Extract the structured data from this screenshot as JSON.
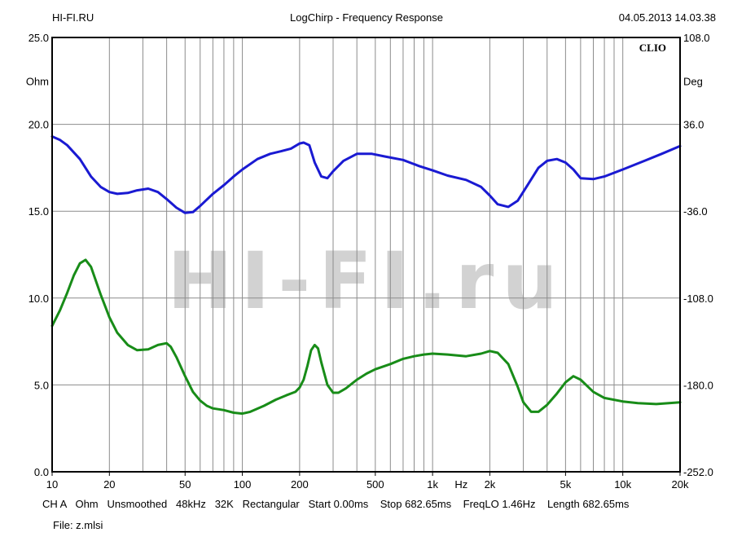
{
  "header": {
    "left": "HI-FI.RU",
    "center": "LogChirp - Frequency Response",
    "right": "04.05.2013 14.03.38"
  },
  "brand": "CLIO",
  "watermark": "HI-FI.ru",
  "footer": {
    "settings": "CH A   Ohm   Unsmoothed   48kHz   32K   Rectangular   Start 0.00ms    Stop 682.65ms    FreqLO 1.46Hz    Length 682.65ms",
    "file": "File: z.mlsi"
  },
  "chart_data": {
    "type": "line",
    "title": "LogChirp - Frequency Response",
    "xscale": "log",
    "xlim": [
      10,
      20000
    ],
    "x_unit_label": "Hz",
    "x_ticks": [
      {
        "v": 10,
        "label": "10"
      },
      {
        "v": 20,
        "label": "20"
      },
      {
        "v": 50,
        "label": "50"
      },
      {
        "v": 100,
        "label": "100"
      },
      {
        "v": 200,
        "label": "200"
      },
      {
        "v": 500,
        "label": "500"
      },
      {
        "v": 1000,
        "label": "1k"
      },
      {
        "v": 2000,
        "label": "2k"
      },
      {
        "v": 5000,
        "label": "5k"
      },
      {
        "v": 10000,
        "label": "10k"
      },
      {
        "v": 20000,
        "label": "20k"
      }
    ],
    "y_left": {
      "unit": "Ohm",
      "ylim": [
        0,
        25
      ],
      "ticks": [
        "25.0",
        "20.0",
        "15.0",
        "10.0",
        "5.0",
        "0.0"
      ]
    },
    "y_right": {
      "unit": "Deg",
      "ylim": [
        -252,
        108
      ],
      "ticks": [
        "108.0",
        "36.0",
        "-36.0",
        "-108.0",
        "-180.0",
        "-252.0"
      ]
    },
    "grid": true,
    "colors": {
      "impedance": "#1a1ad2",
      "phase": "#188c18",
      "grid": "#8c8c8c",
      "frame": "#000000"
    },
    "series": [
      {
        "key": "impedance",
        "axis": "left",
        "x": [
          10,
          11,
          12,
          14,
          16,
          18,
          20,
          22,
          25,
          28,
          32,
          36,
          40,
          45,
          50,
          55,
          60,
          70,
          80,
          90,
          100,
          120,
          140,
          160,
          180,
          200,
          210,
          225,
          240,
          260,
          280,
          300,
          340,
          400,
          480,
          560,
          700,
          850,
          1000,
          1200,
          1500,
          1800,
          2000,
          2200,
          2500,
          2800,
          3200,
          3600,
          4000,
          4500,
          5000,
          5500,
          6000,
          7000,
          8000,
          10000,
          13000,
          16000,
          20000
        ],
        "y": [
          19.3,
          19.1,
          18.8,
          18.0,
          17.0,
          16.4,
          16.1,
          16.0,
          16.05,
          16.2,
          16.3,
          16.1,
          15.7,
          15.2,
          14.9,
          14.95,
          15.3,
          16.0,
          16.5,
          17.0,
          17.4,
          18.0,
          18.3,
          18.45,
          18.6,
          18.9,
          18.95,
          18.8,
          17.8,
          17.0,
          16.9,
          17.3,
          17.9,
          18.3,
          18.3,
          18.15,
          17.95,
          17.6,
          17.35,
          17.05,
          16.8,
          16.4,
          15.9,
          15.4,
          15.25,
          15.6,
          16.6,
          17.5,
          17.9,
          18.0,
          17.8,
          17.4,
          16.9,
          16.85,
          17.0,
          17.4,
          17.9,
          18.3,
          18.75
        ]
      },
      {
        "key": "phase",
        "axis": "left",
        "x": [
          10,
          11,
          12,
          13,
          14,
          15,
          16,
          18,
          20,
          22,
          25,
          28,
          32,
          36,
          40,
          42,
          45,
          50,
          55,
          60,
          65,
          70,
          80,
          90,
          100,
          110,
          130,
          150,
          170,
          190,
          200,
          210,
          220,
          230,
          240,
          250,
          260,
          280,
          300,
          320,
          350,
          400,
          450,
          500,
          600,
          700,
          800,
          900,
          1000,
          1200,
          1500,
          1800,
          2000,
          2200,
          2500,
          2800,
          3000,
          3300,
          3600,
          4000,
          4500,
          5000,
          5500,
          6000,
          7000,
          8000,
          10000,
          12000,
          15000,
          20000
        ],
        "y": [
          8.4,
          9.3,
          10.3,
          11.3,
          12.0,
          12.2,
          11.8,
          10.2,
          8.9,
          8.0,
          7.3,
          7.0,
          7.05,
          7.3,
          7.4,
          7.2,
          6.6,
          5.5,
          4.6,
          4.1,
          3.8,
          3.65,
          3.55,
          3.4,
          3.35,
          3.45,
          3.8,
          4.15,
          4.4,
          4.6,
          4.85,
          5.3,
          6.1,
          7.0,
          7.3,
          7.1,
          6.3,
          5.0,
          4.55,
          4.55,
          4.8,
          5.3,
          5.65,
          5.9,
          6.2,
          6.5,
          6.65,
          6.75,
          6.8,
          6.75,
          6.65,
          6.8,
          6.95,
          6.85,
          6.2,
          4.9,
          4.0,
          3.45,
          3.45,
          3.85,
          4.5,
          5.15,
          5.5,
          5.3,
          4.6,
          4.25,
          4.05,
          3.95,
          3.9,
          4.0
        ]
      }
    ]
  }
}
